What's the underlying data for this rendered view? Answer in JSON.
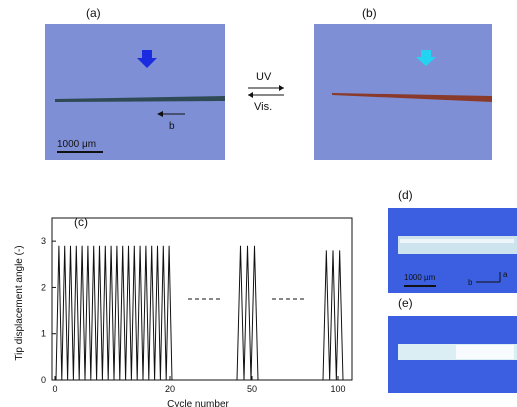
{
  "figure": {
    "labels": {
      "a": "(a)",
      "b": "(b)",
      "c": "(c)",
      "d": "(d)",
      "e": "(e)"
    },
    "between": {
      "uv": "UV",
      "vis": "Vis."
    },
    "scalebar_a": "1000 μm",
    "scalebar_d": "1000 µm",
    "direction_b": "b",
    "direction_a": "a",
    "colors": {
      "photo_bg": "#7f8fd6",
      "arrow_a": "#1a2be0",
      "arrow_b": "#22d4f2",
      "fiber_a": "#2f4a55",
      "fiber_b": "#8a3a2a"
    }
  },
  "chart_data": {
    "type": "line",
    "ylabel": "Tip displacement angle (-)",
    "xlabel": "Cycle number",
    "yticks": [
      "0",
      "1",
      "2",
      "3"
    ],
    "xticks": [
      "0",
      "20",
      "50",
      "100"
    ],
    "ylim": [
      0,
      3.5
    ],
    "peak_value": 2.9,
    "segments": [
      {
        "name": "first",
        "cycles": 20,
        "peak": 2.9
      },
      {
        "name": "middle",
        "cycles": 3,
        "peak": 2.9
      },
      {
        "name": "end",
        "cycles": 3,
        "peak": 2.8
      }
    ],
    "gap_marker": "dashed"
  }
}
